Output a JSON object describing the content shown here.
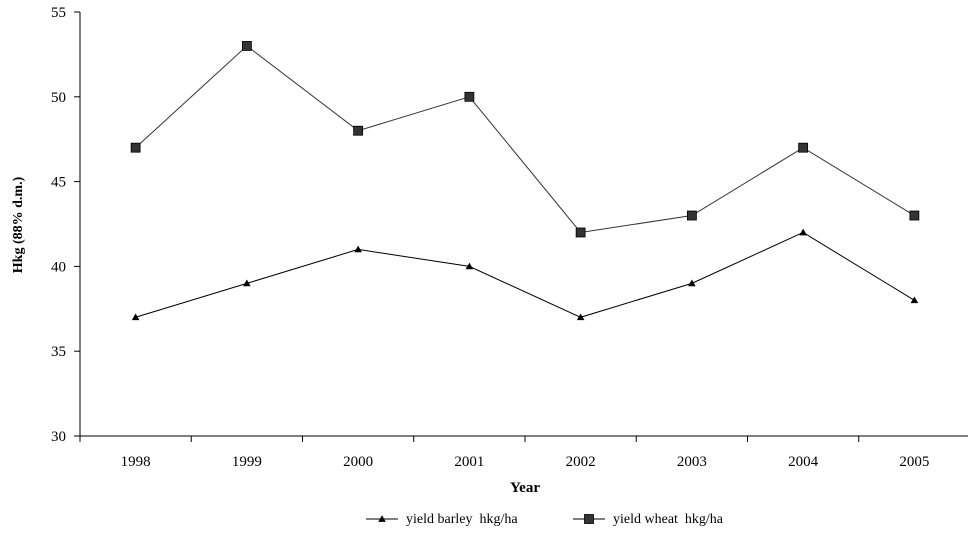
{
  "chart_data": {
    "type": "line",
    "title": "",
    "xlabel": "Year",
    "ylabel": "Hkg (88% d.m.)",
    "categories": [
      "1998",
      "1999",
      "2000",
      "2001",
      "2002",
      "2003",
      "2004",
      "2005"
    ],
    "ylim": [
      30,
      55
    ],
    "yticks": [
      30,
      35,
      40,
      45,
      50,
      55
    ],
    "grid": false,
    "legend_position": "bottom",
    "series": [
      {
        "name": "yield barley  hkg/ha",
        "marker": "triangle",
        "color": "#000000",
        "values": [
          37,
          39,
          41,
          40,
          37,
          39,
          42,
          38
        ]
      },
      {
        "name": "yield wheat  hkg/ha",
        "marker": "square",
        "color": "#333333",
        "values": [
          47,
          53,
          48,
          50,
          42,
          43,
          47,
          43
        ]
      }
    ]
  }
}
